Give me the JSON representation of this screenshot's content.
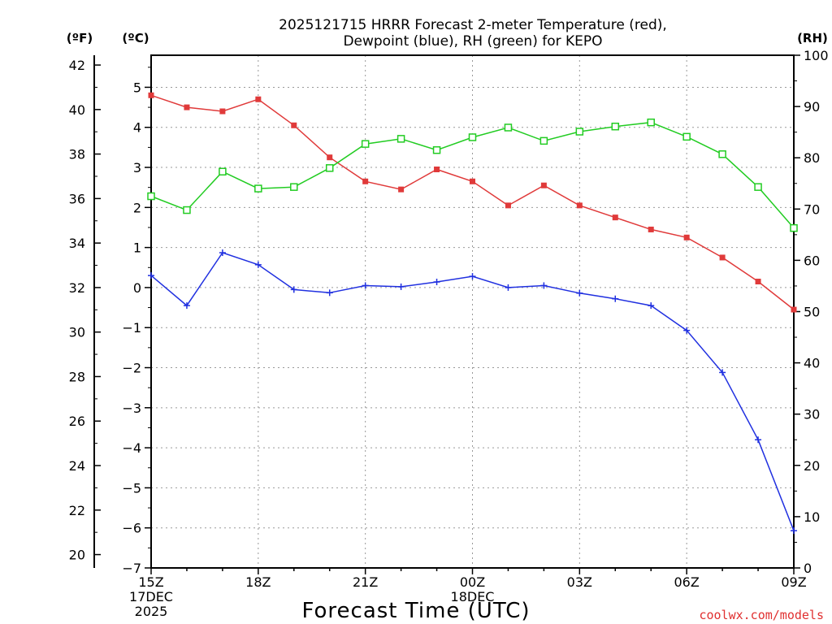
{
  "chart_data": {
    "type": "line",
    "title_line1": "2025121715 HRRR Forecast 2-meter Temperature (red),",
    "title_line2": "Dewpoint (blue), RH (green) for KEPO",
    "units": {
      "fahrenheit": "(ºF)",
      "celsius": "(ºC)",
      "rh": "(RH)"
    },
    "xlabel": "Forecast Time (UTC)",
    "credit": "coolwx.com/models",
    "x_hours": [
      15,
      16,
      17,
      18,
      19,
      20,
      21,
      22,
      23,
      24,
      25,
      26,
      27,
      28,
      29,
      30,
      31,
      32,
      33
    ],
    "x_ticks": [
      {
        "hour": 15,
        "lines": [
          "15Z",
          "17DEC",
          "2025"
        ]
      },
      {
        "hour": 18,
        "lines": [
          "18Z"
        ]
      },
      {
        "hour": 21,
        "lines": [
          "21Z"
        ]
      },
      {
        "hour": 24,
        "lines": [
          "00Z",
          "18DEC"
        ]
      },
      {
        "hour": 27,
        "lines": [
          "03Z"
        ]
      },
      {
        "hour": 30,
        "lines": [
          "06Z"
        ]
      },
      {
        "hour": 33,
        "lines": [
          "09Z"
        ]
      }
    ],
    "celsius_ylim": [
      -7,
      5.8
    ],
    "celsius_ticks": [
      "5",
      "4",
      "3",
      "2",
      "1",
      "0",
      "−1",
      "−2",
      "−3",
      "−4",
      "−5",
      "−6",
      "−7"
    ],
    "fahrenheit_ticks": [
      "42",
      "40",
      "38",
      "36",
      "34",
      "32",
      "30",
      "28",
      "26",
      "24",
      "22",
      "20"
    ],
    "rh_ylim": [
      0,
      100
    ],
    "rh_ticks": [
      "100",
      "90",
      "80",
      "70",
      "60",
      "50",
      "40",
      "30",
      "20",
      "10",
      "0"
    ],
    "series": [
      {
        "name": "2-meter Temperature",
        "unit": "C",
        "color": "#e03a3a",
        "marker": "filled-square",
        "values": [
          4.8,
          4.5,
          4.4,
          4.7,
          4.05,
          3.25,
          2.65,
          2.45,
          2.95,
          2.65,
          2.05,
          2.55,
          2.05,
          1.75,
          1.45,
          1.25,
          0.75,
          0.15,
          -0.55
        ]
      },
      {
        "name": "Dewpoint",
        "unit": "C",
        "color": "#2030e0",
        "marker": "plus",
        "values": [
          0.3,
          -0.45,
          0.87,
          0.57,
          -0.05,
          -0.13,
          0.05,
          0.02,
          0.14,
          0.28,
          0.0,
          0.05,
          -0.14,
          -0.28,
          -0.45,
          -1.07,
          -2.12,
          -3.8,
          -6.07
        ]
      },
      {
        "name": "RH",
        "unit": "%",
        "color": "#22cc22",
        "marker": "open-square",
        "values": [
          72.5,
          69.8,
          77.3,
          74.0,
          74.3,
          78.0,
          82.7,
          83.7,
          81.5,
          84.0,
          85.9,
          83.3,
          85.1,
          86.1,
          86.9,
          84.1,
          80.7,
          74.3,
          66.3
        ]
      }
    ]
  }
}
